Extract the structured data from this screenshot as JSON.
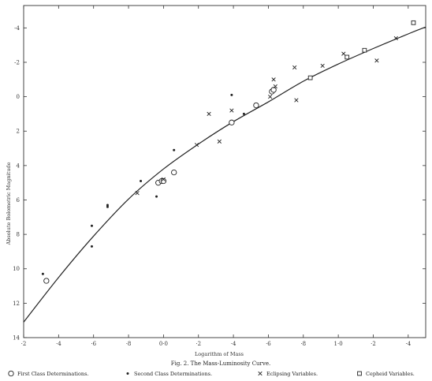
{
  "chart_data": {
    "type": "scatter",
    "title": "Fig. 2.  The Mass-Luminosity Curve.",
    "xlabel": "Logarithm of Mass",
    "ylabel": "Absolute Bolometric Magnitude",
    "xlim": [
      -0.8,
      1.5
    ],
    "ylim": [
      14,
      -5.3
    ],
    "y_inverted": true,
    "grid": false,
    "x_ticks": [
      {
        "value": -0.8,
        "label": "·2"
      },
      {
        "value": -0.6,
        "label": "·4"
      },
      {
        "value": -0.4,
        "label": "·6"
      },
      {
        "value": -0.2,
        "label": "·8"
      },
      {
        "value": 0.0,
        "label": "0·0"
      },
      {
        "value": 0.2,
        "label": "·2"
      },
      {
        "value": 0.4,
        "label": "·4"
      },
      {
        "value": 0.6,
        "label": "·6"
      },
      {
        "value": 0.8,
        "label": "·8"
      },
      {
        "value": 1.0,
        "label": "1·0"
      },
      {
        "value": 1.2,
        "label": "·2"
      },
      {
        "value": 1.4,
        "label": "·4"
      }
    ],
    "y_ticks": [
      {
        "value": -4,
        "label": "-4"
      },
      {
        "value": -2,
        "label": "-2"
      },
      {
        "value": 0,
        "label": "0"
      },
      {
        "value": 2,
        "label": "2"
      },
      {
        "value": 4,
        "label": "4"
      },
      {
        "value": 6,
        "label": "6"
      },
      {
        "value": 8,
        "label": "8"
      },
      {
        "value": 10,
        "label": "10"
      },
      {
        "value": 12,
        "label": "12"
      },
      {
        "value": 14,
        "label": "14"
      }
    ],
    "curve": {
      "x": [
        -0.8,
        -0.6,
        -0.4,
        -0.2,
        0.0,
        0.2,
        0.4,
        0.6,
        0.8,
        1.0,
        1.2,
        1.4,
        1.5
      ],
      "y": [
        13.1,
        10.5,
        8.1,
        5.95,
        4.2,
        2.75,
        1.45,
        0.3,
        -0.9,
        -1.9,
        -2.8,
        -3.65,
        -4.05
      ]
    },
    "series": [
      {
        "name": "First Class Determinations.",
        "marker": "open-circle",
        "points": [
          [
            -0.67,
            10.7
          ],
          [
            -0.03,
            5.0
          ],
          [
            -0.01,
            4.9
          ],
          [
            0.0,
            4.9
          ],
          [
            0.06,
            4.4
          ],
          [
            0.39,
            1.5
          ],
          [
            0.53,
            0.5
          ],
          [
            0.62,
            -0.3
          ],
          [
            0.63,
            -0.4
          ]
        ]
      },
      {
        "name": "Second Class Determinations.",
        "marker": "dot",
        "points": [
          [
            -0.69,
            10.3
          ],
          [
            -0.41,
            7.5
          ],
          [
            -0.41,
            8.7
          ],
          [
            -0.32,
            6.3
          ],
          [
            -0.32,
            6.4
          ],
          [
            -0.13,
            4.9
          ],
          [
            -0.04,
            5.8
          ],
          [
            0.06,
            3.1
          ],
          [
            0.39,
            -0.1
          ],
          [
            0.46,
            1.0
          ]
        ]
      },
      {
        "name": "Eclipsing Variables.",
        "marker": "x",
        "points": [
          [
            -0.15,
            5.6
          ],
          [
            0.0,
            4.8
          ],
          [
            0.19,
            2.8
          ],
          [
            0.26,
            1.0
          ],
          [
            0.32,
            2.6
          ],
          [
            0.39,
            0.8
          ],
          [
            0.61,
            0.0
          ],
          [
            0.63,
            -1.0
          ],
          [
            0.64,
            -0.6
          ],
          [
            0.75,
            -1.7
          ],
          [
            0.76,
            0.2
          ],
          [
            0.91,
            -1.8
          ],
          [
            1.03,
            -2.5
          ],
          [
            1.22,
            -2.1
          ],
          [
            1.33,
            -3.4
          ]
        ]
      },
      {
        "name": "Cepheid Variables.",
        "marker": "open-square",
        "points": [
          [
            0.84,
            -1.1
          ],
          [
            1.05,
            -2.3
          ],
          [
            1.15,
            -2.7
          ],
          [
            1.43,
            -4.3
          ]
        ]
      }
    ],
    "legend_position": "bottom"
  }
}
